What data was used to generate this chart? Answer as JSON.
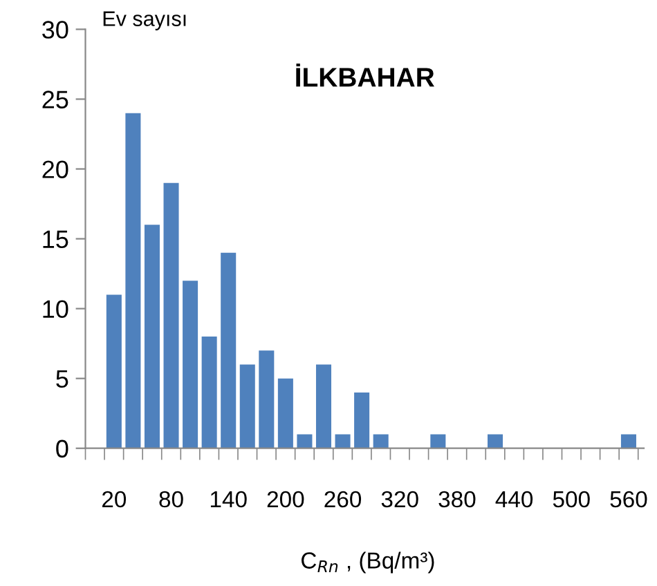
{
  "chart_data": {
    "type": "bar",
    "title": "İLKBAHAR",
    "ylabel": "Ev sayısı",
    "xlabel": "C$_{Rn}$ , (Bq/m³)",
    "categories": [
      "20",
      null,
      null,
      "80",
      null,
      null,
      "140",
      null,
      null,
      "200",
      null,
      null,
      "260",
      null,
      null,
      "320",
      null,
      null,
      "380",
      null,
      null,
      "440",
      null,
      null,
      "500",
      null,
      null,
      "560"
    ],
    "values": [
      11,
      24,
      16,
      19,
      12,
      8,
      14,
      6,
      7,
      5,
      1,
      6,
      1,
      4,
      1,
      0,
      0,
      1,
      0,
      0,
      1,
      0,
      0,
      0,
      0,
      0,
      0,
      1
    ],
    "color": "#4f81bd",
    "ylim": [
      0,
      30
    ],
    "yticks": [
      0,
      5,
      10,
      15,
      20,
      25,
      30
    ],
    "grid": false,
    "legend": false
  }
}
